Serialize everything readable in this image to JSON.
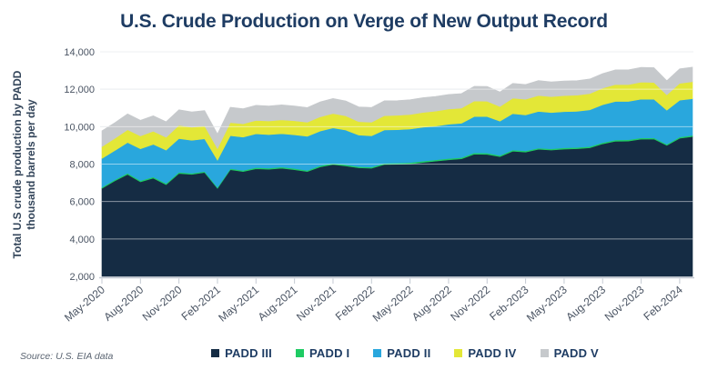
{
  "source": "Source: U.S. EIA data",
  "colors": {
    "background": "#ffffff",
    "title_text": "#1e3c63",
    "axis_text": "#4a5463",
    "axis_line": "#c4cad3",
    "grid_under": "#dadee4",
    "grid_over": "#ffffff",
    "padd_iii": "#152c44",
    "padd_i": "#1ecb63",
    "padd_ii": "#29a7dd",
    "padd_iv": "#e3e737",
    "padd_v": "#c6c9cc"
  },
  "chart_data": {
    "type": "area",
    "stacked": true,
    "title": "U.S. Crude Production on Verge of New Output Record",
    "ylabel_line1": "Total U.S crude production by PADD",
    "ylabel_line2": "thousand barrels per day",
    "xlabel": "",
    "ylim": [
      2000,
      14000
    ],
    "grid": "horizontal",
    "legend_position": "bottom",
    "y_ticks": [
      {
        "value": 2000,
        "label": "2,000"
      },
      {
        "value": 4000,
        "label": "4,000"
      },
      {
        "value": 6000,
        "label": "6,000"
      },
      {
        "value": 8000,
        "label": "8,000"
      },
      {
        "value": 10000,
        "label": "10,000"
      },
      {
        "value": 12000,
        "label": "12,000"
      },
      {
        "value": 14000,
        "label": "14,000"
      }
    ],
    "x_tick_every": 3,
    "x_tick_labels": [
      "May-2020",
      "Aug-2020",
      "Nov-2020",
      "Feb-2021",
      "May-2021",
      "Aug-2021",
      "Nov-2021",
      "Feb-2022",
      "May-2022",
      "Aug-2022",
      "Nov-2022",
      "Feb-2023",
      "May-2023",
      "Aug-2023",
      "Nov-2023",
      "Feb-2024"
    ],
    "x": [
      "May-2020",
      "Jun-2020",
      "Jul-2020",
      "Aug-2020",
      "Sep-2020",
      "Oct-2020",
      "Nov-2020",
      "Dec-2020",
      "Jan-2021",
      "Feb-2021",
      "Mar-2021",
      "Apr-2021",
      "May-2021",
      "Jun-2021",
      "Jul-2021",
      "Aug-2021",
      "Sep-2021",
      "Oct-2021",
      "Nov-2021",
      "Dec-2021",
      "Jan-2022",
      "Feb-2022",
      "Mar-2022",
      "Apr-2022",
      "May-2022",
      "Jun-2022",
      "Jul-2022",
      "Aug-2022",
      "Sep-2022",
      "Oct-2022",
      "Nov-2022",
      "Dec-2022",
      "Jan-2023",
      "Feb-2023",
      "Mar-2023",
      "Apr-2023",
      "May-2023",
      "Jun-2023",
      "Jul-2023",
      "Aug-2023",
      "Sep-2023",
      "Oct-2023",
      "Nov-2023",
      "Dec-2023",
      "Jan-2024",
      "Feb-2024",
      "Mar-2024"
    ],
    "series": [
      {
        "name": "PADD III",
        "color": "#152c44",
        "values": [
          6700,
          7100,
          7450,
          7050,
          7250,
          6900,
          7500,
          7450,
          7550,
          6700,
          7700,
          7600,
          7750,
          7720,
          7780,
          7700,
          7600,
          7850,
          7980,
          7900,
          7800,
          7780,
          7980,
          7990,
          8010,
          8090,
          8160,
          8230,
          8280,
          8530,
          8520,
          8400,
          8690,
          8640,
          8790,
          8750,
          8800,
          8820,
          8870,
          9080,
          9220,
          9230,
          9330,
          9340,
          9000,
          9380,
          9470
        ]
      },
      {
        "name": "PADD I",
        "color": "#1ecb63",
        "values": [
          60,
          60,
          65,
          65,
          65,
          65,
          65,
          60,
          60,
          55,
          60,
          60,
          65,
          65,
          65,
          65,
          65,
          65,
          65,
          65,
          60,
          60,
          65,
          65,
          70,
          70,
          70,
          70,
          70,
          70,
          70,
          65,
          65,
          65,
          65,
          65,
          70,
          70,
          70,
          70,
          70,
          70,
          70,
          65,
          60,
          65,
          65
        ]
      },
      {
        "name": "PADD II",
        "color": "#29a7dd",
        "values": [
          1540,
          1560,
          1640,
          1700,
          1740,
          1780,
          1800,
          1760,
          1740,
          1450,
          1760,
          1780,
          1800,
          1790,
          1780,
          1800,
          1820,
          1850,
          1890,
          1850,
          1690,
          1670,
          1780,
          1780,
          1790,
          1810,
          1800,
          1830,
          1830,
          1940,
          1950,
          1830,
          1940,
          1920,
          1960,
          1940,
          1930,
          1930,
          1960,
          2020,
          2060,
          2050,
          2070,
          2060,
          1820,
          1970,
          1960
        ]
      },
      {
        "name": "PADD IV",
        "color": "#e3e737",
        "values": [
          630,
          650,
          680,
          690,
          700,
          690,
          710,
          700,
          690,
          620,
          700,
          710,
          720,
          730,
          740,
          750,
          750,
          760,
          770,
          760,
          720,
          730,
          760,
          770,
          780,
          790,
          800,
          810,
          810,
          830,
          820,
          780,
          830,
          840,
          850,
          850,
          860,
          860,
          870,
          890,
          900,
          900,
          910,
          900,
          820,
          900,
          910
        ]
      },
      {
        "name": "PADD V",
        "color": "#c6c9cc",
        "values": [
          850,
          840,
          850,
          840,
          830,
          830,
          830,
          820,
          820,
          790,
          820,
          810,
          810,
          800,
          800,
          790,
          790,
          800,
          800,
          800,
          790,
          790,
          800,
          790,
          790,
          790,
          790,
          780,
          780,
          790,
          790,
          780,
          790,
          790,
          800,
          790,
          780,
          780,
          780,
          780,
          790,
          790,
          790,
          790,
          760,
          780,
          780
        ]
      }
    ]
  }
}
